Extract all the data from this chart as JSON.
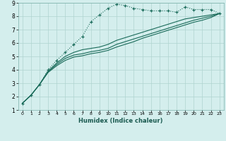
{
  "xlabel": "Humidex (Indice chaleur)",
  "ylabel": "",
  "background_color": "#d4eeed",
  "grid_color": "#afd4d0",
  "line_color": "#1a6b5a",
  "xlim": [
    -0.5,
    23.5
  ],
  "ylim": [
    1,
    9
  ],
  "xticks": [
    0,
    1,
    2,
    3,
    4,
    5,
    6,
    7,
    8,
    9,
    10,
    11,
    12,
    13,
    14,
    15,
    16,
    17,
    18,
    19,
    20,
    21,
    22,
    23
  ],
  "yticks": [
    1,
    2,
    3,
    4,
    5,
    6,
    7,
    8,
    9
  ],
  "series1_x": [
    0,
    1,
    2,
    3,
    4,
    5,
    6,
    7,
    8,
    9,
    10,
    11,
    12,
    13,
    14,
    15,
    16,
    17,
    18,
    19,
    20,
    21,
    22,
    23
  ],
  "series1_y": [
    1.5,
    2.1,
    2.9,
    4.0,
    4.7,
    5.3,
    5.9,
    6.5,
    7.6,
    8.1,
    8.6,
    8.9,
    8.8,
    8.6,
    8.5,
    8.4,
    8.4,
    8.4,
    8.3,
    8.7,
    8.5,
    8.5,
    8.5,
    8.2
  ],
  "series2_x": [
    0,
    1,
    2,
    3,
    4,
    5,
    6,
    7,
    8,
    9,
    10,
    11,
    12,
    13,
    14,
    15,
    16,
    17,
    18,
    19,
    20,
    21,
    22,
    23
  ],
  "series2_y": [
    1.5,
    2.1,
    2.9,
    3.9,
    4.5,
    5.0,
    5.3,
    5.5,
    5.6,
    5.7,
    5.9,
    6.2,
    6.4,
    6.6,
    6.8,
    7.0,
    7.2,
    7.4,
    7.6,
    7.8,
    7.9,
    8.0,
    8.1,
    8.2
  ],
  "series3_x": [
    0,
    1,
    2,
    3,
    4,
    5,
    6,
    7,
    8,
    9,
    10,
    11,
    12,
    13,
    14,
    15,
    16,
    17,
    18,
    19,
    20,
    21,
    22,
    23
  ],
  "series3_y": [
    1.5,
    2.1,
    2.9,
    3.85,
    4.4,
    4.85,
    5.1,
    5.2,
    5.35,
    5.45,
    5.6,
    5.9,
    6.1,
    6.3,
    6.5,
    6.7,
    6.9,
    7.1,
    7.3,
    7.5,
    7.7,
    7.85,
    8.0,
    8.2
  ],
  "series4_x": [
    0,
    1,
    2,
    3,
    4,
    5,
    6,
    7,
    8,
    9,
    10,
    11,
    12,
    13,
    14,
    15,
    16,
    17,
    18,
    19,
    20,
    21,
    22,
    23
  ],
  "series4_y": [
    1.5,
    2.1,
    2.9,
    3.8,
    4.3,
    4.7,
    4.95,
    5.05,
    5.2,
    5.3,
    5.45,
    5.7,
    5.9,
    6.1,
    6.35,
    6.55,
    6.75,
    6.95,
    7.15,
    7.35,
    7.55,
    7.7,
    7.9,
    8.2
  ]
}
